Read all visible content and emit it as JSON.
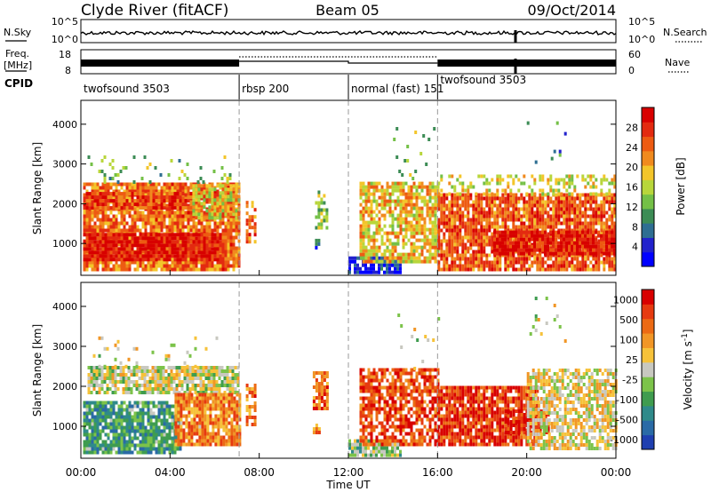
{
  "header": {
    "station": "Clyde River (fitACF)",
    "beam": "Beam 05",
    "date": "09/Oct/2014"
  },
  "strip_labels": {
    "nsky": "N.Sky",
    "nsearch": "N.Search",
    "freq": "Freq.",
    "freq_unit": "[MHz]",
    "nave": "Nave",
    "cpid": "CPID"
  },
  "strip_axes": {
    "noise_left_ticks": [
      "10^5",
      "10^0"
    ],
    "noise_right_ticks": [
      "10^5",
      "10^0"
    ],
    "freq_left_ticks": [
      "18",
      "8"
    ],
    "nave_right_ticks": [
      "60",
      "0"
    ]
  },
  "cpid_segments": [
    {
      "label": "twofsound 3503",
      "start_h": 0.0,
      "end_h": 7.1
    },
    {
      "label": "rbsp 200",
      "start_h": 7.1,
      "end_h": 12.0
    },
    {
      "label": "normal (fast) 151",
      "start_h": 12.0,
      "end_h": 16.0
    },
    {
      "label": "twofsound 3503",
      "start_h": 16.0,
      "end_h": 24.0
    }
  ],
  "mode_boundaries_h": [
    7.1,
    12.0,
    16.0
  ],
  "x_axis": {
    "label": "Time UT",
    "ticks": [
      "00:00",
      "04:00",
      "08:00",
      "12:00",
      "16:00",
      "20:00",
      "00:00"
    ],
    "range_h": [
      0,
      24
    ]
  },
  "chart_data": [
    {
      "type": "heatmap",
      "name": "power",
      "ylabel": "Slant Range [km]",
      "yticks": [
        "1000",
        "2000",
        "3000",
        "4000"
      ],
      "ylim": [
        200,
        4600
      ],
      "colorbar_label": "Power [dB]",
      "colorbar_ticks": [
        "4",
        "8",
        "12",
        "16",
        "20",
        "24",
        "28"
      ],
      "colorbar_range": [
        0,
        32
      ],
      "colors": [
        "#0000ff",
        "#2222cc",
        "#2e6e92",
        "#3c8c55",
        "#74c047",
        "#b8d63b",
        "#f3c52a",
        "#f08a1e",
        "#ed5b12",
        "#e32a10",
        "#d80000"
      ],
      "regions": [
        {
          "t0": 0.1,
          "t1": 7.1,
          "r0": 300,
          "r1": 2500,
          "level": 0.74,
          "density": 0.88
        },
        {
          "t0": 0.1,
          "t1": 6.2,
          "r0": 550,
          "r1": 1250,
          "level": 0.93,
          "density": 0.95
        },
        {
          "t0": 0.1,
          "t1": 5.0,
          "r0": 1850,
          "r1": 2250,
          "level": 0.82,
          "density": 0.85
        },
        {
          "t0": 5.0,
          "t1": 7.1,
          "r0": 1600,
          "r1": 2450,
          "level": 0.58,
          "density": 0.7
        },
        {
          "t0": 0.3,
          "t1": 6.8,
          "r0": 2500,
          "r1": 3200,
          "level": 0.4,
          "density": 0.09
        },
        {
          "t0": 7.4,
          "t1": 7.8,
          "r0": 1000,
          "r1": 2000,
          "level": 0.75,
          "density": 0.55
        },
        {
          "t0": 10.5,
          "t1": 11.0,
          "r0": 1350,
          "r1": 2300,
          "level": 0.45,
          "density": 0.6
        },
        {
          "t0": 10.5,
          "t1": 10.7,
          "r0": 850,
          "r1": 1050,
          "level": 0.15,
          "density": 0.5
        },
        {
          "t0": 12.0,
          "t1": 14.3,
          "r0": 230,
          "r1": 600,
          "level": 0.1,
          "density": 0.85
        },
        {
          "t0": 12.5,
          "t1": 16.0,
          "r0": 500,
          "r1": 2500,
          "level": 0.6,
          "density": 0.72
        },
        {
          "t0": 14.0,
          "t1": 16.0,
          "r0": 2500,
          "r1": 3900,
          "level": 0.45,
          "density": 0.05
        },
        {
          "t0": 16.0,
          "t1": 24.0,
          "r0": 300,
          "r1": 2200,
          "level": 0.78,
          "density": 0.85
        },
        {
          "t0": 18.5,
          "t1": 24.0,
          "r0": 700,
          "r1": 1300,
          "level": 0.92,
          "density": 0.9
        },
        {
          "t0": 16.0,
          "t1": 24.0,
          "r0": 2200,
          "r1": 2700,
          "level": 0.55,
          "density": 0.35
        },
        {
          "t0": 20.0,
          "t1": 22.0,
          "r0": 3000,
          "r1": 4000,
          "level": 0.3,
          "density": 0.04
        }
      ]
    },
    {
      "type": "heatmap",
      "name": "velocity",
      "ylabel": "Slant Range [km]",
      "yticks": [
        "1000",
        "2000",
        "3000",
        "4000"
      ],
      "ylim": [
        200,
        4600
      ],
      "colorbar_label": "Velocity [m s^-1]",
      "colorbar_ticks": [
        "1000",
        "500",
        "100",
        "25",
        "-25",
        "-100",
        "-500",
        "-1000"
      ],
      "colors": [
        "#1f3fb0",
        "#2a6aa6",
        "#2f8a8a",
        "#3f9c4f",
        "#7cc34a",
        "#c8c8c0",
        "#f6c23a",
        "#f19626",
        "#ec6a14",
        "#e63a10",
        "#d80000"
      ],
      "regions": [
        {
          "t0": 0.1,
          "t1": 4.5,
          "r0": 300,
          "r1": 1600,
          "level": 0.3,
          "density": 0.85
        },
        {
          "t0": 0.3,
          "t1": 7.0,
          "r0": 1800,
          "r1": 2450,
          "level": 0.5,
          "density": 0.85
        },
        {
          "t0": 4.2,
          "t1": 7.1,
          "r0": 500,
          "r1": 1800,
          "level": 0.72,
          "density": 0.9
        },
        {
          "t0": 0.3,
          "t1": 6.5,
          "r0": 2450,
          "r1": 3200,
          "level": 0.5,
          "density": 0.07
        },
        {
          "t0": 7.4,
          "t1": 7.8,
          "r0": 1000,
          "r1": 2000,
          "level": 0.75,
          "density": 0.55
        },
        {
          "t0": 10.4,
          "t1": 11.0,
          "r0": 1400,
          "r1": 2300,
          "level": 0.76,
          "density": 0.75
        },
        {
          "t0": 10.4,
          "t1": 10.7,
          "r0": 800,
          "r1": 1000,
          "level": 0.75,
          "density": 0.4
        },
        {
          "t0": 12.0,
          "t1": 14.3,
          "r0": 230,
          "r1": 600,
          "level": 0.4,
          "density": 0.85
        },
        {
          "t0": 12.5,
          "t1": 16.0,
          "r0": 500,
          "r1": 2400,
          "level": 0.84,
          "density": 0.72
        },
        {
          "t0": 14.2,
          "t1": 16.0,
          "r0": 2400,
          "r1": 3900,
          "level": 0.5,
          "density": 0.05
        },
        {
          "t0": 16.0,
          "t1": 20.5,
          "r0": 500,
          "r1": 2000,
          "level": 0.88,
          "density": 0.85
        },
        {
          "t0": 19.0,
          "t1": 21.0,
          "r0": 800,
          "r1": 1400,
          "level": 0.96,
          "density": 0.8
        },
        {
          "t0": 20.0,
          "t1": 24.0,
          "r0": 400,
          "r1": 2400,
          "level": 0.55,
          "density": 0.72
        },
        {
          "t0": 20.0,
          "t1": 22.0,
          "r0": 3000,
          "r1": 4200,
          "level": 0.5,
          "density": 0.04
        }
      ]
    }
  ]
}
